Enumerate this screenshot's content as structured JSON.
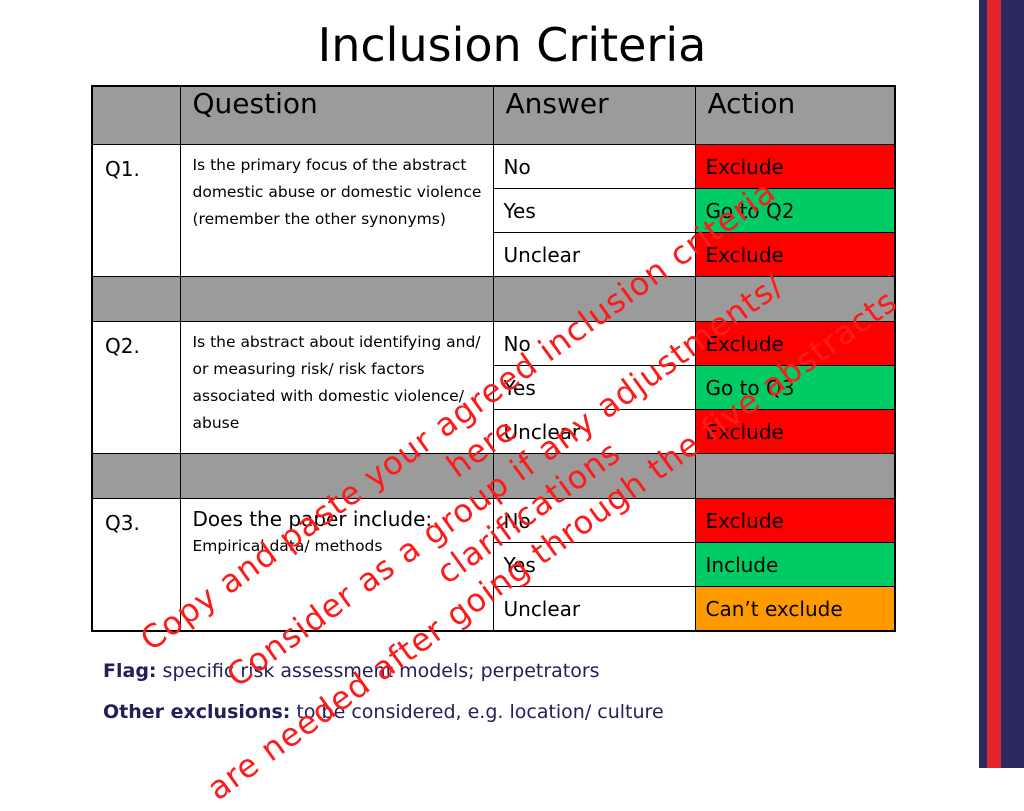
{
  "title": "Inclusion Criteria",
  "table": {
    "headers": [
      "",
      "Question",
      "Answer",
      "Action"
    ],
    "q1": {
      "id": "Q1.",
      "text": "Is the primary focus of the abstract domestic abuse or domestic violence (remember the other synonyms)",
      "rows": [
        {
          "answer": "No",
          "action": "Exclude"
        },
        {
          "answer": "Yes",
          "action": "Go to Q2"
        },
        {
          "answer": "Unclear",
          "action": "Exclude"
        }
      ]
    },
    "q2": {
      "id": "Q2.",
      "text": "Is the abstract about identifying and/ or measuring risk/ risk factors associated with domestic violence/ abuse",
      "rows": [
        {
          "answer": "No",
          "action": "Exclude"
        },
        {
          "answer": "Yes",
          "action": "Go to Q3"
        },
        {
          "answer": "Unclear",
          "action": "Exclude"
        }
      ]
    },
    "q3": {
      "id": "Q3.",
      "text_main": "Does the paper include:",
      "text_sub": "Empirical data/ methods",
      "rows": [
        {
          "answer": "No",
          "action": "Exclude"
        },
        {
          "answer": "Yes",
          "action": "Include"
        },
        {
          "answer": "Unclear",
          "action": "Can’t exclude"
        }
      ]
    }
  },
  "notes": {
    "flag_label": "Flag:",
    "flag_text": " specific risk assessment models; perpetrators",
    "other_label": "Other exclusions:",
    "other_text": " to be considered, e.g. location/ culture"
  },
  "overlay": {
    "line1": "Copy and paste your agreed inclusion criteria here",
    "line2": "Consider as a group if any adjustments/ clarifications",
    "line3": "are needed after going through the five abstracts"
  },
  "colors": {
    "exclude": "#ff0000",
    "include": "#00cc66",
    "cant_exclude": "#ff9900",
    "header": "#9b9b9b",
    "accent_blue": "#2b2a5e",
    "accent_red": "#e3262a",
    "overlay_text": "#ff1a1a"
  }
}
